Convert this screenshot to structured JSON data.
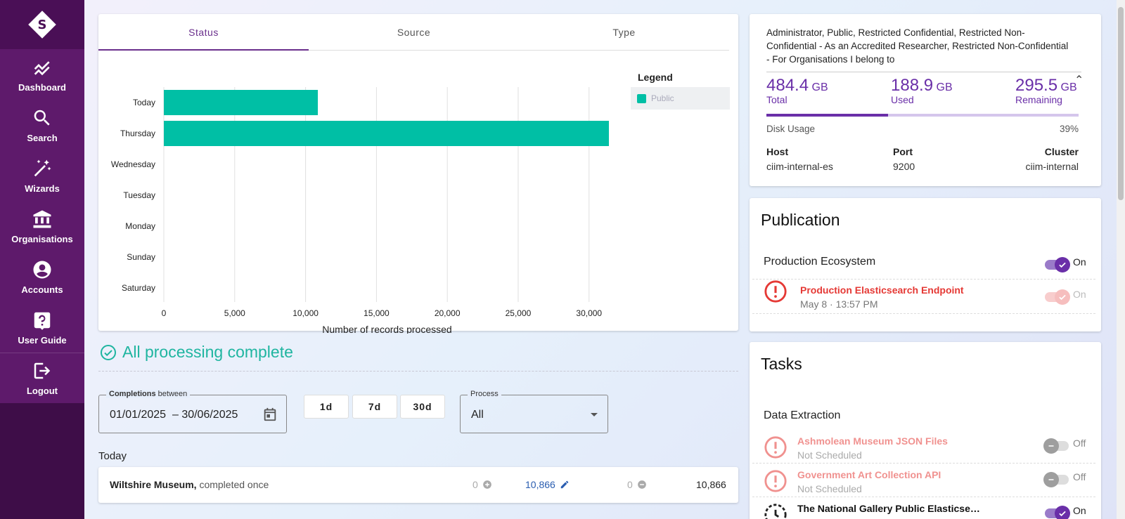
{
  "sidebar": {
    "items": [
      {
        "label": "Dashboard",
        "icon": "chart-line-icon"
      },
      {
        "label": "Search",
        "icon": "search-icon"
      },
      {
        "label": "Wizards",
        "icon": "magic-wand-icon"
      },
      {
        "label": "Organisations",
        "icon": "bank-icon"
      },
      {
        "label": "Accounts",
        "icon": "account-circle-icon"
      },
      {
        "label": "User Guide",
        "icon": "help-box-icon"
      }
    ],
    "logout_label": "Logout"
  },
  "chart_tabs": [
    "Status",
    "Source",
    "Type"
  ],
  "chart_data": {
    "type": "bar",
    "orientation": "horizontal",
    "categories": [
      "Today",
      "Thursday",
      "Wednesday",
      "Tuesday",
      "Monday",
      "Sunday",
      "Saturday"
    ],
    "series": [
      {
        "name": "Public",
        "values": [
          10866,
          31400,
          0,
          0,
          0,
          0,
          0
        ],
        "color": "#00bfa5"
      }
    ],
    "xlabel": "Number of records processed",
    "xlim": [
      0,
      31500
    ],
    "xticks": [
      0,
      5000,
      10000,
      15000,
      20000,
      25000,
      30000
    ],
    "xtick_labels": [
      "0",
      "5,000",
      "10,000",
      "15,000",
      "20,000",
      "25,000",
      "30,000"
    ],
    "legend_title": "Legend",
    "legend_placement": "right",
    "grid": true
  },
  "processing": {
    "title": "All processing complete",
    "completions_label_bold": "Completions",
    "completions_label_rest": " between",
    "date_range": "01/01/2025  – 30/06/2025",
    "range_buttons": [
      "1d",
      "7d",
      "30d"
    ],
    "process_label": "Process",
    "process_value": "All",
    "group_label": "Today",
    "row": {
      "name": "Wiltshire Museum,",
      "detail": " completed once",
      "added": "0",
      "updated": "10,866",
      "removed": "0",
      "total": "10,866"
    }
  },
  "disk": {
    "roles": "Administrator, Public, Restricted Confidential, Restricted Non-Confidential - As an Accredited Researcher, Restricted Non-Confidential - For Organisations I belong to",
    "total_num": "484.4",
    "total_unit": "GB",
    "total_label": "Total",
    "used_num": "188.9",
    "used_unit": "GB",
    "used_label": "Used",
    "remaining_num": "295.5",
    "remaining_unit": "GB",
    "remaining_label": "Remaining",
    "usage_label": "Disk Usage",
    "usage_pct": "39%",
    "usage_fraction": 0.39,
    "host_label": "Host",
    "host": "ciim-internal-es",
    "port_label": "Port",
    "port": "9200",
    "cluster_label": "Cluster",
    "cluster": "ciim-internal"
  },
  "publication": {
    "title": "Publication",
    "ecosystem": "Production Ecosystem",
    "ecosystem_state": "On",
    "endpoint_name": "Production Elasticsearch Endpoint",
    "endpoint_time": "May 8 · 13:57 PM",
    "endpoint_state": "On"
  },
  "tasks": {
    "title": "Tasks",
    "section": "Data Extraction",
    "items": [
      {
        "name": "Ashmolean Museum JSON Files",
        "status": "Not Scheduled",
        "state": "Off"
      },
      {
        "name": "Government Art Collection API",
        "status": "Not Scheduled",
        "state": "Off"
      },
      {
        "name": "The National Gallery Public Elasticse…",
        "status": "",
        "state": "On"
      }
    ]
  },
  "colors": {
    "brand": "#5e1a6b",
    "accent": "#6a2fa8",
    "teal": "#00bfa5",
    "error": "#e53935"
  }
}
